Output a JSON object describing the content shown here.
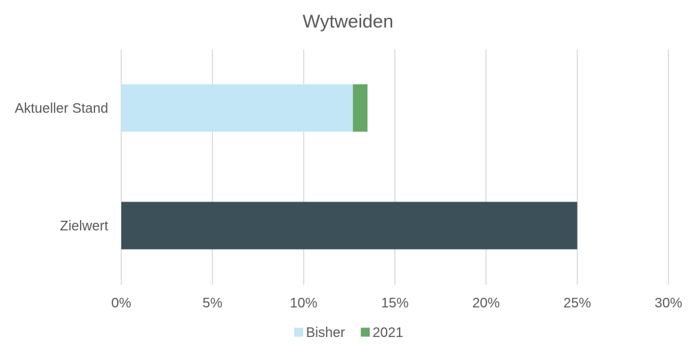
{
  "chart_data": {
    "type": "bar",
    "orientation": "horizontal",
    "stacked": true,
    "title": "Wytweiden",
    "xlabel": "",
    "ylabel": "",
    "categories": [
      "Aktueller Stand",
      "Zielwert"
    ],
    "series": [
      {
        "name": "Bisher",
        "color": "#c2e6f5",
        "values": [
          0.127,
          null
        ]
      },
      {
        "name": "2021",
        "color": "#65a865",
        "values": [
          0.008,
          null
        ]
      },
      {
        "name": "",
        "color": "#3c5059",
        "values": [
          null,
          0.25
        ]
      }
    ],
    "x_ticks": [
      "0%",
      "5%",
      "10%",
      "15%",
      "20%",
      "25%",
      "30%"
    ],
    "xlim": [
      0,
      0.3
    ],
    "grid": "vertical",
    "legend_position": "bottom"
  }
}
